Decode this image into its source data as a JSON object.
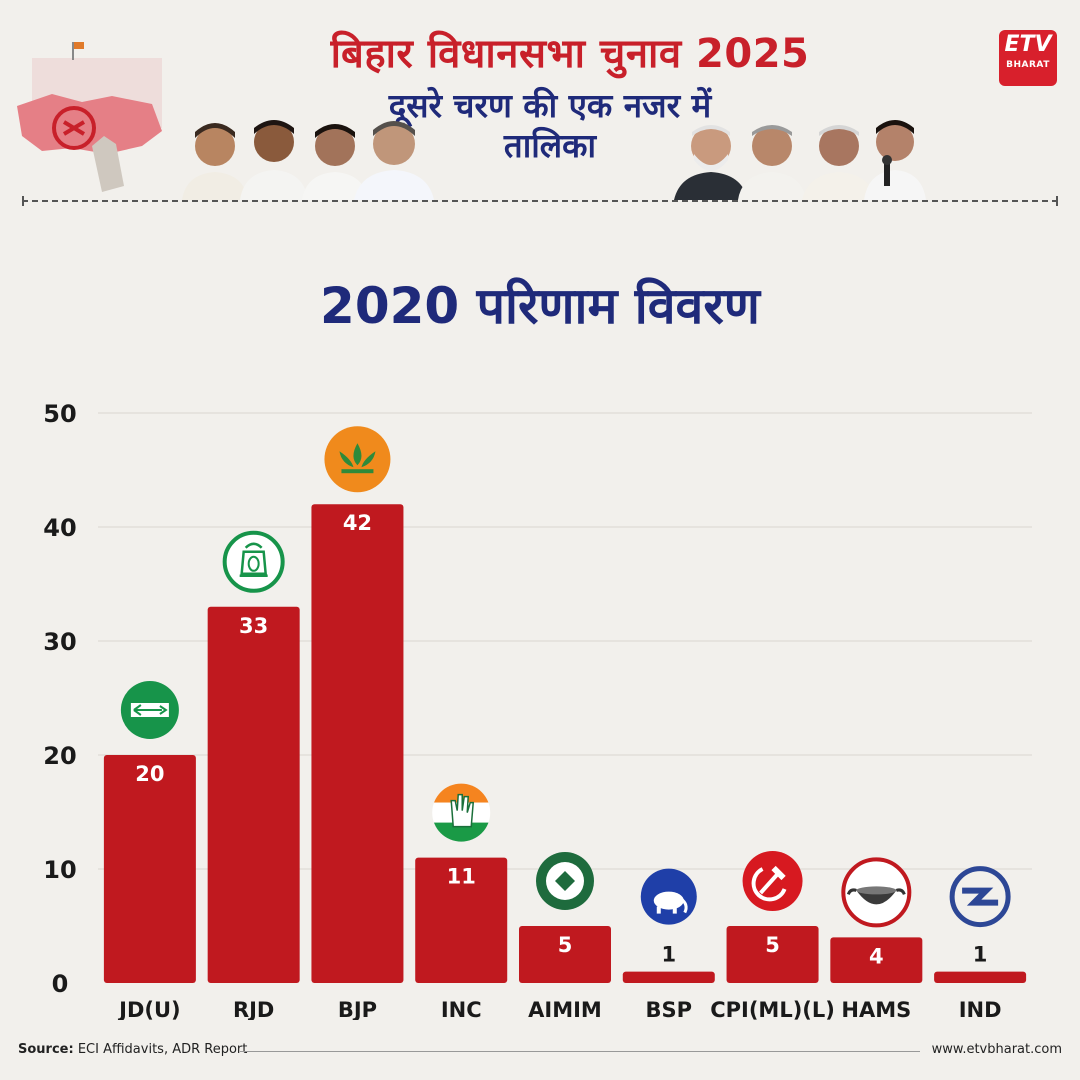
{
  "header": {
    "title_line1": "बिहार विधानसभा चुनाव 2025",
    "title_line2": "दूसरे चरण की एक नजर में",
    "title_line3": "तालिका",
    "logo_text": "ETV",
    "logo_subtext": "BHARAT",
    "colors": {
      "red": "#c8202a",
      "navy": "#1f2a7a",
      "background": "#f2f0ec"
    }
  },
  "chart_title": "2020 परिणाम विवरण",
  "chart_data": {
    "type": "bar",
    "categories": [
      "JD(U)",
      "RJD",
      "BJP",
      "INC",
      "AIMIM",
      "BSP",
      "CPI(ML)(L)",
      "HAMS",
      "IND"
    ],
    "values": [
      20,
      33,
      42,
      11,
      5,
      1,
      5,
      4,
      1
    ],
    "ylim": [
      0,
      50
    ],
    "yticks": [
      0,
      10,
      20,
      30,
      40,
      50
    ],
    "bar_color": "#c0191f",
    "grid": true,
    "title": "2020 परिणाम विवरण",
    "xlabel": "",
    "ylabel": "",
    "party_symbols": [
      "arrow-icon",
      "lantern-icon",
      "lotus-icon",
      "hand-icon",
      "kite-icon",
      "elephant-icon",
      "hammer-sickle-icon",
      "wok-icon",
      "ind-symbol-icon"
    ]
  },
  "footer": {
    "source_label": "Source:",
    "source_text": "ECI Affidavits, ADR Report",
    "url": "www.etvbharat.com"
  }
}
